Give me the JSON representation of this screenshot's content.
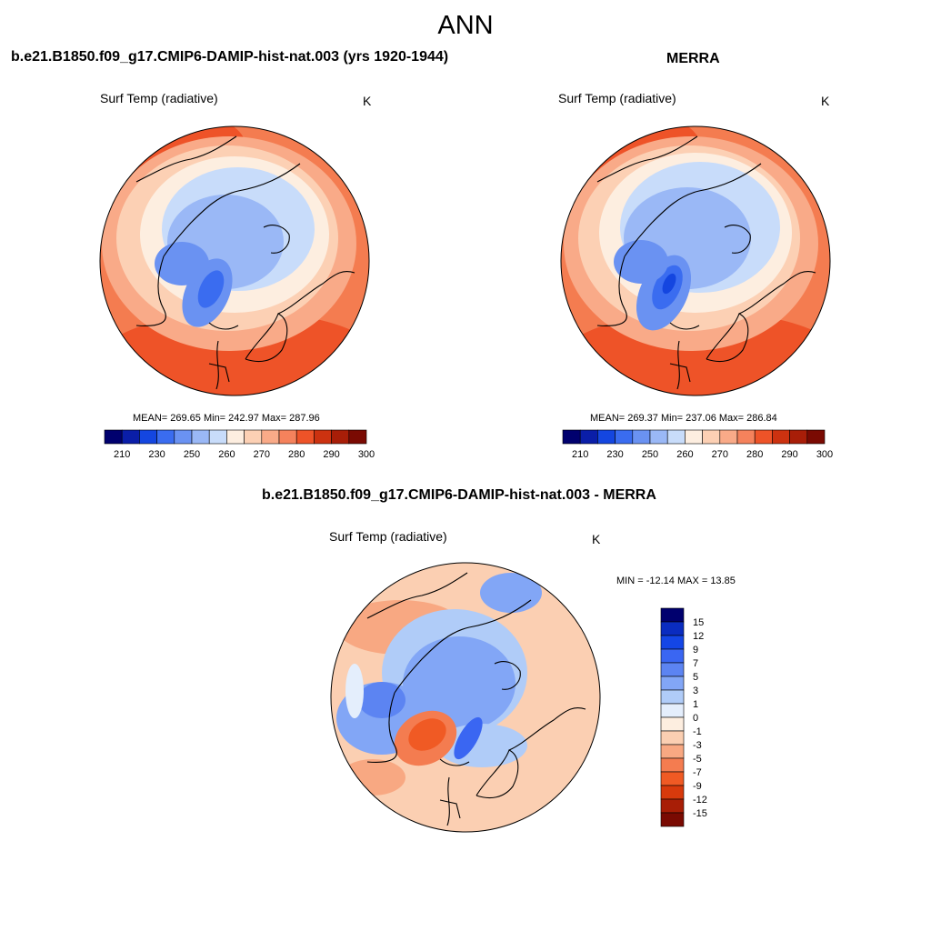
{
  "main_title": "ANN",
  "panel1": {
    "title": "b.e21.B1850.f09_g17.CMIP6-DAMIP-hist-nat.003 (yrs 1920-1944)",
    "subtitle": "Surf Temp (radiative)",
    "units": "K",
    "stats": "MEAN= 269.65  Min= 242.97  Max= 287.96"
  },
  "panel2": {
    "title": "MERRA",
    "subtitle": "Surf Temp (radiative)",
    "units": "K",
    "stats": "MEAN= 269.37  Min= 237.06  Max= 286.84"
  },
  "panel3": {
    "title": "b.e21.B1850.f09_g17.CMIP6-DAMIP-hist-nat.003 - MERRA",
    "subtitle": "Surf Temp (radiative)",
    "units": "K",
    "stats": "MIN = -12.14 MAX =  13.85"
  },
  "abs_colorbar": {
    "colors": [
      "#00006e",
      "#0a1ea8",
      "#1446e0",
      "#3a6cf0",
      "#6a92f2",
      "#9ab8f6",
      "#c8dcfa",
      "#fdeee0",
      "#fcd0b4",
      "#f9aa88",
      "#f5825c",
      "#ee5328",
      "#cc3210",
      "#a81e08",
      "#7a0a02"
    ],
    "labels": [
      "210",
      "230",
      "250",
      "260",
      "270",
      "280",
      "290",
      "300"
    ]
  },
  "diff_colorbar": {
    "colors": [
      "#00006e",
      "#0a2cc0",
      "#1446e6",
      "#3a66f2",
      "#5c84f2",
      "#82a6f6",
      "#b0ccf8",
      "#e4eefc",
      "#fdeee0",
      "#fbcfb2",
      "#f8a882",
      "#f47c50",
      "#f05a24",
      "#d83a0c",
      "#a81e06",
      "#7a0a02"
    ],
    "labels": [
      "15",
      "12",
      "9",
      "7",
      "5",
      "3",
      "1",
      "0",
      "-1",
      "-3",
      "-5",
      "-7",
      "-9",
      "-12",
      "-15"
    ]
  }
}
